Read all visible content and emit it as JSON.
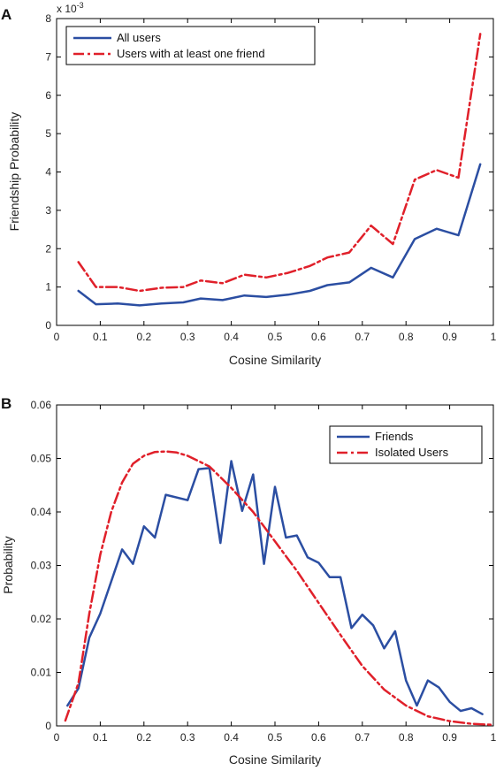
{
  "chart_data": [
    {
      "panel": "A",
      "type": "line",
      "xlabel": "Cosine Similarity",
      "ylabel": "Friendship Probability",
      "exponent_label": "x 10",
      "exponent_power": "-3",
      "xlim": [
        0,
        1
      ],
      "ylim": [
        0,
        8
      ],
      "xticks": [
        "0",
        "0.1",
        "0.2",
        "0.3",
        "0.4",
        "0.5",
        "0.6",
        "0.7",
        "0.8",
        "0.9",
        "1"
      ],
      "yticks": [
        "0",
        "1",
        "2",
        "3",
        "4",
        "5",
        "6",
        "7",
        "8"
      ],
      "legend_position": "top-left",
      "series": [
        {
          "name": "All users",
          "color": "#2b4ea2",
          "style": "solid",
          "x": [
            0.05,
            0.09,
            0.14,
            0.19,
            0.24,
            0.29,
            0.33,
            0.38,
            0.43,
            0.48,
            0.53,
            0.58,
            0.62,
            0.67,
            0.72,
            0.77,
            0.82,
            0.87,
            0.92,
            0.97
          ],
          "y": [
            0.9,
            0.55,
            0.57,
            0.52,
            0.57,
            0.6,
            0.7,
            0.66,
            0.78,
            0.74,
            0.8,
            0.9,
            1.05,
            1.12,
            1.5,
            1.25,
            2.25,
            2.52,
            2.35,
            4.2
          ]
        },
        {
          "name": "Users with at least one friend",
          "color": "#e0202a",
          "style": "dashdot",
          "x": [
            0.05,
            0.09,
            0.14,
            0.19,
            0.24,
            0.29,
            0.33,
            0.38,
            0.43,
            0.48,
            0.53,
            0.58,
            0.62,
            0.67,
            0.72,
            0.77,
            0.82,
            0.87,
            0.92,
            0.97
          ],
          "y": [
            1.65,
            1.0,
            1.0,
            0.9,
            0.98,
            1.0,
            1.17,
            1.1,
            1.32,
            1.25,
            1.37,
            1.55,
            1.77,
            1.9,
            2.6,
            2.12,
            3.8,
            4.05,
            3.85,
            7.6
          ]
        }
      ]
    },
    {
      "panel": "B",
      "type": "line",
      "xlabel": "Cosine Similarity",
      "ylabel": "Probability",
      "xlim": [
        0,
        1
      ],
      "ylim": [
        0,
        0.06
      ],
      "xticks": [
        "0",
        "0.1",
        "0.2",
        "0.3",
        "0.4",
        "0.5",
        "0.6",
        "0.7",
        "0.8",
        "0.9",
        "1"
      ],
      "yticks": [
        "0",
        "0.01",
        "0.02",
        "0.03",
        "0.04",
        "0.05",
        "0.06"
      ],
      "legend_position": "top-right",
      "series": [
        {
          "name": "Friends",
          "color": "#2b4ea2",
          "style": "solid",
          "x": [
            0.025,
            0.05,
            0.075,
            0.1,
            0.125,
            0.15,
            0.175,
            0.2,
            0.225,
            0.25,
            0.3,
            0.325,
            0.35,
            0.375,
            0.4,
            0.425,
            0.45,
            0.475,
            0.5,
            0.525,
            0.55,
            0.575,
            0.6,
            0.625,
            0.65,
            0.675,
            0.7,
            0.725,
            0.75,
            0.775,
            0.8,
            0.825,
            0.85,
            0.875,
            0.9,
            0.925,
            0.95,
            0.975
          ],
          "y": [
            0.0038,
            0.007,
            0.0165,
            0.021,
            0.027,
            0.033,
            0.0303,
            0.0373,
            0.0352,
            0.0432,
            0.0422,
            0.048,
            0.0482,
            0.0342,
            0.0495,
            0.0402,
            0.047,
            0.0303,
            0.0447,
            0.0352,
            0.0356,
            0.0315,
            0.0305,
            0.0278,
            0.0278,
            0.0183,
            0.0208,
            0.0188,
            0.0145,
            0.0177,
            0.0085,
            0.0038,
            0.0085,
            0.0072,
            0.0045,
            0.0028,
            0.0033,
            0.0022
          ]
        },
        {
          "name": "Isolated Users",
          "color": "#e0202a",
          "style": "dashdot",
          "x": [
            0.02,
            0.05,
            0.075,
            0.1,
            0.125,
            0.15,
            0.175,
            0.2,
            0.225,
            0.25,
            0.275,
            0.3,
            0.325,
            0.35,
            0.375,
            0.4,
            0.45,
            0.5,
            0.55,
            0.6,
            0.65,
            0.7,
            0.75,
            0.8,
            0.85,
            0.9,
            0.95,
            1.0
          ],
          "y": [
            0.001,
            0.008,
            0.021,
            0.032,
            0.04,
            0.0455,
            0.049,
            0.0505,
            0.0512,
            0.0513,
            0.0511,
            0.0505,
            0.0495,
            0.0485,
            0.0465,
            0.0445,
            0.04,
            0.0345,
            0.029,
            0.023,
            0.017,
            0.0112,
            0.0068,
            0.0038,
            0.0018,
            0.0009,
            0.0004,
            0.0002
          ]
        }
      ]
    }
  ]
}
